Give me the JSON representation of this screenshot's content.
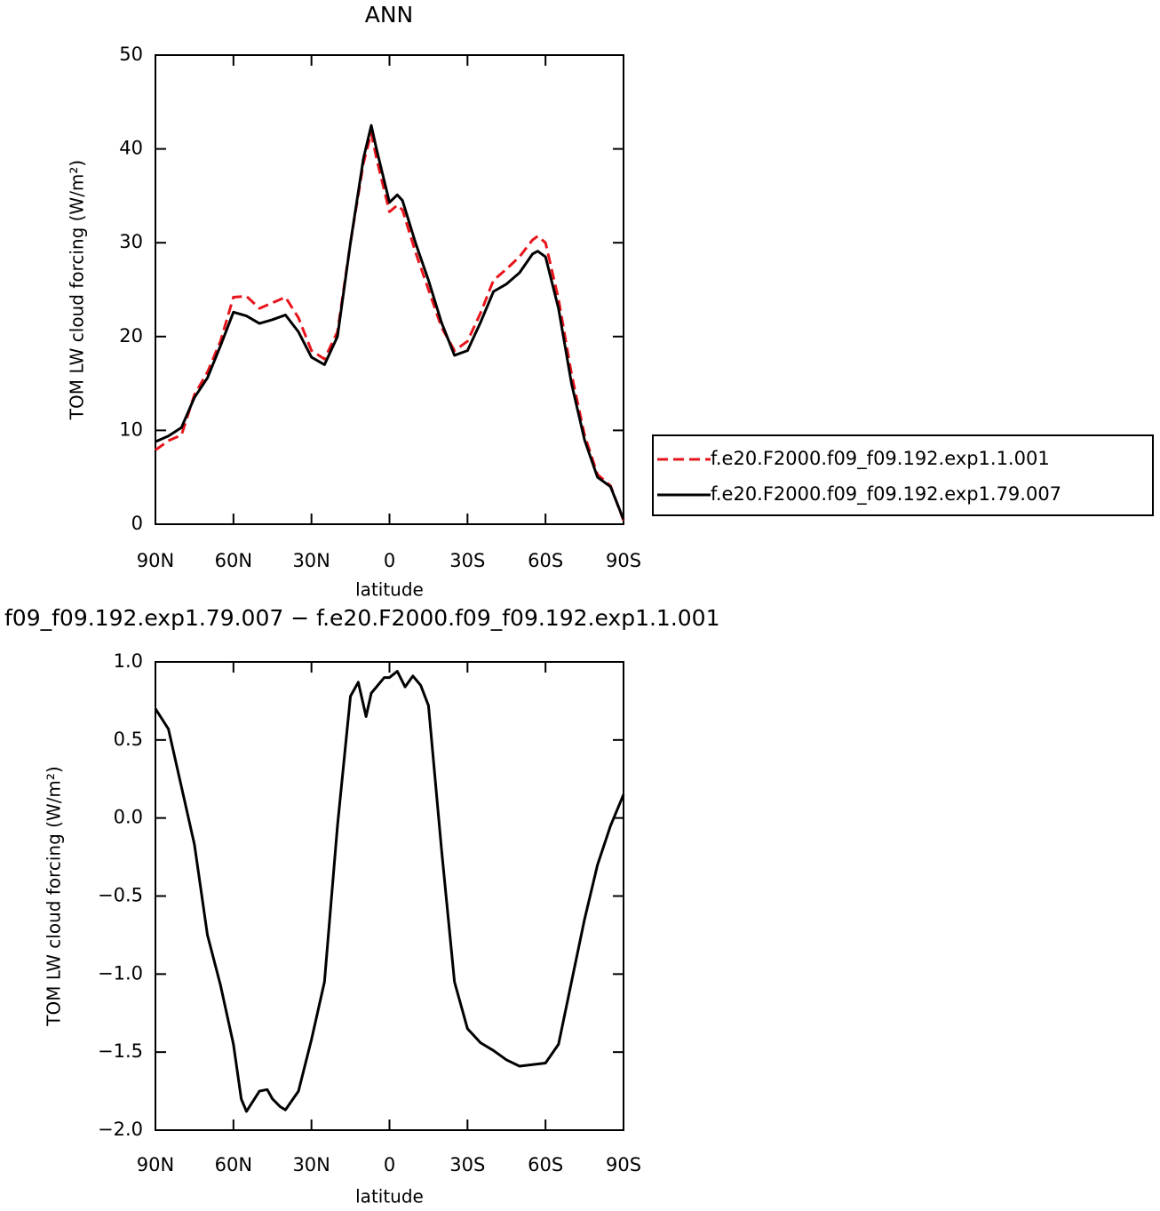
{
  "chart_data": [
    {
      "type": "line",
      "title": "ANN",
      "x_label": "latitude",
      "y_label": "TOM LW cloud forcing (W/m²)",
      "x": [
        90,
        85,
        80,
        75,
        70,
        65,
        60,
        55,
        50,
        45,
        40,
        35,
        30,
        25,
        20,
        15,
        10,
        7,
        5,
        0,
        -3,
        -5,
        -10,
        -15,
        -20,
        -25,
        -30,
        -35,
        -40,
        -45,
        -50,
        -55,
        -57,
        -60,
        -65,
        -70,
        -75,
        -80,
        -85,
        -90
      ],
      "series": [
        {
          "name": "f.e20.F2000.f09_f09.192.exp1.1.001",
          "color": "#e8141b",
          "line_style": "dashed",
          "values": [
            7.9,
            8.9,
            9.5,
            13.8,
            16.2,
            19.5,
            24.2,
            24.3,
            23.0,
            23.6,
            24.2,
            22,
            18.5,
            17.6,
            20.5,
            30,
            38.5,
            41.7,
            39,
            33.3,
            34,
            33.5,
            29,
            25,
            21,
            18.5,
            19.5,
            22.5,
            26,
            27.2,
            28.5,
            30.3,
            30.7,
            30,
            24,
            16,
            9.5,
            5.3,
            4.1,
            0.4
          ]
        },
        {
          "name": "f.e20.F2000.f09_f09.192.exp1.79.007",
          "color": "#000000",
          "line_style": "solid",
          "values": [
            8.8,
            9.4,
            10.3,
            13.5,
            15.6,
            19.0,
            22.6,
            22.2,
            21.4,
            21.8,
            22.3,
            20.5,
            17.8,
            17.0,
            20.0,
            30,
            39,
            42.5,
            40,
            34.3,
            35.1,
            34.5,
            30,
            26,
            21.5,
            18.0,
            18.5,
            21.5,
            24.8,
            25.6,
            26.8,
            28.8,
            29.1,
            28.5,
            23,
            15,
            9,
            5,
            4.0,
            0.5
          ]
        }
      ],
      "xlim": [
        90,
        -90
      ],
      "xticks": [
        {
          "value": 90,
          "label": "90N"
        },
        {
          "value": 60,
          "label": "60N"
        },
        {
          "value": 30,
          "label": "30N"
        },
        0,
        {
          "value": -30,
          "label": "30S"
        },
        {
          "value": -60,
          "label": "60S"
        },
        {
          "value": -90,
          "label": "90S"
        }
      ],
      "ylim": [
        0,
        50
      ],
      "yticks": [
        0,
        10,
        20,
        30,
        40,
        50
      ],
      "legend": "right"
    },
    {
      "type": "line",
      "title": "f09_f09.192.exp1.79.007 − f.e20.F2000.f09_f09.192.exp1.1.001",
      "x_label": "latitude",
      "y_label": "TOM LW cloud forcing (W/m²)",
      "x": [
        90,
        85,
        80,
        75,
        70,
        65,
        60,
        57,
        55,
        50,
        47,
        45,
        42,
        40,
        35,
        30,
        25,
        20,
        15,
        12,
        9,
        7,
        5,
        2,
        0,
        -3,
        -6,
        -9,
        -12,
        -15,
        -20,
        -25,
        -30,
        -35,
        -40,
        -45,
        -50,
        -55,
        -60,
        -65,
        -70,
        -75,
        -80,
        -85,
        -90
      ],
      "values": [
        0.7,
        0.57,
        0.2,
        -0.17,
        -0.75,
        -1.07,
        -1.45,
        -1.8,
        -1.88,
        -1.75,
        -1.74,
        -1.8,
        -1.85,
        -1.87,
        -1.75,
        -1.42,
        -1.05,
        -0.05,
        0.78,
        0.87,
        0.65,
        0.8,
        0.84,
        0.9,
        0.9,
        0.94,
        0.84,
        0.91,
        0.85,
        0.72,
        -0.2,
        -1.05,
        -1.35,
        -1.44,
        -1.49,
        -1.55,
        -1.59,
        -1.58,
        -1.57,
        -1.45,
        -1.05,
        -0.65,
        -0.3,
        -0.05,
        0.15
      ],
      "color": "#000000",
      "xlim": [
        90,
        -90
      ],
      "xticks": [
        {
          "value": 90,
          "label": "90N"
        },
        {
          "value": 60,
          "label": "60N"
        },
        {
          "value": 30,
          "label": "30N"
        },
        0,
        {
          "value": -30,
          "label": "30S"
        },
        {
          "value": -60,
          "label": "60S"
        },
        {
          "value": -90,
          "label": "90S"
        }
      ],
      "ylim": [
        -2,
        1
      ],
      "yticks": [
        {
          "value": -2,
          "label": "−2.0"
        },
        {
          "value": -1.5,
          "label": "−1.5"
        },
        {
          "value": -1,
          "label": "−1.0"
        },
        {
          "value": -0.5,
          "label": "−0.5"
        },
        {
          "value": 0,
          "label": "0.0"
        },
        0.5,
        {
          "value": 1,
          "label": "1.0"
        }
      ]
    }
  ]
}
